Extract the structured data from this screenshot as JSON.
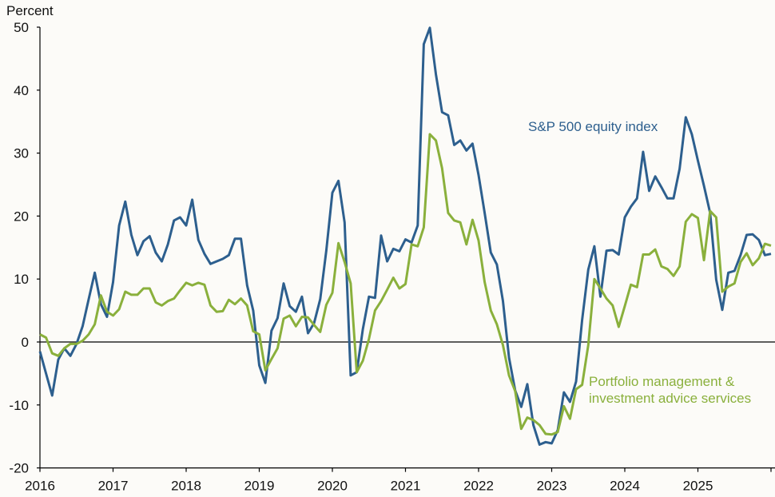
{
  "chart_data": {
    "type": "line",
    "ylabel": "Percent",
    "ylim": [
      -20,
      50
    ],
    "yticks": [
      "50",
      "40",
      "30",
      "20",
      "10",
      "0",
      "-10",
      "-20"
    ],
    "xticks": [
      "2016",
      "2017",
      "2018",
      "2019",
      "2020",
      "2021",
      "2022",
      "2023",
      "2024",
      "2025"
    ],
    "x_start": "2016-01",
    "x_frequency": "monthly",
    "grid": false,
    "legend": "inline labels",
    "series": [
      {
        "name": "S&P 500 equity index",
        "color": "#2d5f8e",
        "values": [
          -1.5,
          -5,
          -8.5,
          -2.8,
          -1,
          -2.2,
          -0.3,
          2.5,
          6.8,
          11,
          6,
          4,
          9.5,
          18.5,
          22.3,
          17,
          13.8,
          16,
          16.8,
          14.2,
          12.8,
          15.5,
          19.3,
          19.8,
          18.5,
          22.6,
          16.2,
          14,
          12.4,
          12.8,
          13.2,
          13.8,
          16.4,
          16.4,
          9,
          5,
          -3.7,
          -6.5,
          1.8,
          3.8,
          9.3,
          5.7,
          4.8,
          7.2,
          1.4,
          3,
          6.8,
          14.5,
          23.7,
          25.6,
          19,
          -5.3,
          -4.8,
          2,
          7.2,
          7,
          16.9,
          12.8,
          14.8,
          14.4,
          16.3,
          15.8,
          18.5,
          47.3,
          49.9,
          42.5,
          36.5,
          36,
          31.3,
          32,
          30.4,
          31.5,
          26.5,
          20.5,
          14.2,
          12.3,
          6.5,
          -2.5,
          -7.7,
          -10.3,
          -6.7,
          -13.2,
          -16.3,
          -15.9,
          -16.1,
          -14,
          -8,
          -9.5,
          -6.3,
          3.5,
          11.5,
          15.2,
          7.2,
          14.5,
          14.6,
          13.9,
          19.8,
          21.5,
          22.8,
          30.2,
          24,
          26.3,
          24.6,
          22.8,
          22.8,
          27.5,
          35.7,
          33,
          28.8,
          24.8,
          20.5,
          9.9,
          5.1,
          11,
          11.3,
          13.8,
          17,
          17.1,
          16.2,
          13.8,
          14
        ]
      },
      {
        "name": "Portfolio management & investment advice services",
        "color": "#8ab03c",
        "values": [
          1.2,
          0.7,
          -1.8,
          -2.2,
          -1,
          -0.3,
          -0.3,
          0.2,
          1.2,
          2.8,
          7.4,
          4.8,
          4.2,
          5.2,
          8,
          7.5,
          7.5,
          8.5,
          8.5,
          6.3,
          5.8,
          6.5,
          6.9,
          8.2,
          9.4,
          9,
          9.4,
          9.1,
          5.8,
          4.8,
          4.9,
          6.7,
          6,
          6.9,
          5.8,
          1.7,
          1.2,
          -4.5,
          -2.7,
          -1,
          3.7,
          4.2,
          2.5,
          4,
          3.9,
          2.7,
          1.6,
          5.9,
          7.8,
          15.7,
          12.7,
          9.3,
          -4.8,
          -3,
          0.5,
          5,
          6.5,
          8.3,
          10.2,
          8.5,
          9.2,
          15.5,
          15.2,
          18.2,
          33,
          32,
          27.6,
          20.5,
          19.3,
          19,
          15.5,
          19.4,
          16.1,
          9.5,
          5,
          2.8,
          -0.5,
          -5.3,
          -7.8,
          -13.8,
          -12,
          -12.4,
          -13.2,
          -14.6,
          -14.7,
          -14.3,
          -10.2,
          -12.2,
          -7.5,
          -6.8,
          -0.5,
          10,
          8.5,
          6.9,
          5.8,
          2.4,
          5.7,
          9.1,
          8.7,
          13.9,
          13.9,
          14.7,
          12,
          11.6,
          10.5,
          12,
          19.1,
          20.3,
          19.7,
          13,
          20.8,
          19.8,
          8,
          8.8,
          9.3,
          12.7,
          14.1,
          12.2,
          13.3,
          15.6,
          15.3
        ]
      }
    ],
    "annotations": {
      "sp500_label": "S&P 500 equity index",
      "pmia_label_line1": "Portfolio management &",
      "pmia_label_line2": "investment advice services"
    }
  }
}
